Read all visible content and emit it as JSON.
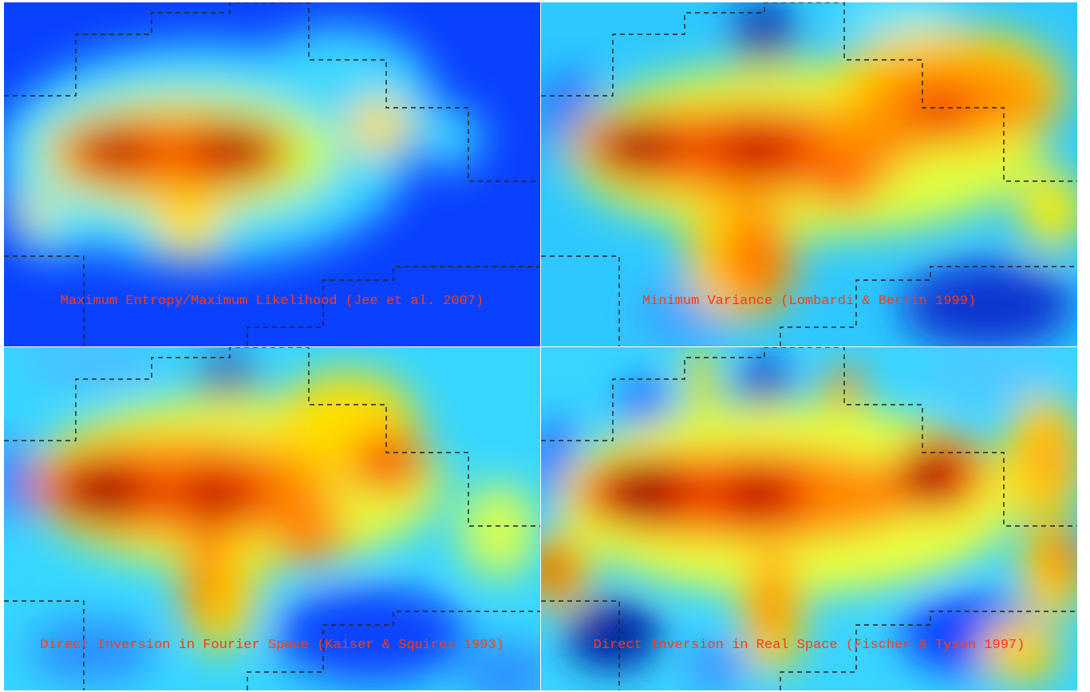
{
  "panels": [
    {
      "caption": "Maximum Entropy/Maximum Likelihood (Jee et al. 2007)",
      "background": "#1a5cff",
      "colormap": "jet"
    },
    {
      "caption": "Minimum Variance (Lombardi & Bertin 1999)",
      "background": "#2bc8ff",
      "colormap": "jet"
    },
    {
      "caption": "Direct Inversion in Fourier Space (Kaiser & Squires 1993)",
      "background": "#35d7ff",
      "colormap": "jet"
    },
    {
      "caption": "Direct Inversion in Real Space (Fischer & Tyson 1997)",
      "background": "#39d4ff",
      "colormap": "jet"
    }
  ],
  "border_color": "#000000",
  "caption_color": "#ff3a10"
}
